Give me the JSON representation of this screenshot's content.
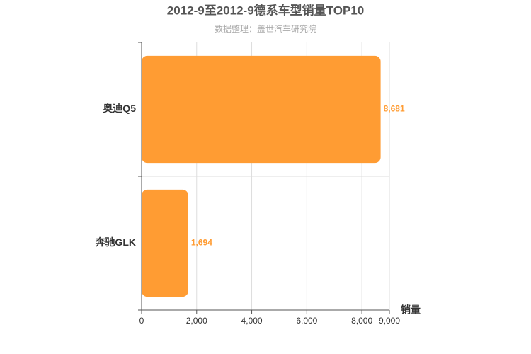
{
  "chart_data": {
    "type": "hbar",
    "title": "2012-9至2012-9德系车型销量TOP10",
    "subtitle": "数据整理：盖世汽车研究院",
    "x_label": "销量",
    "categories": [
      "奥迪Q5",
      "奔驰GLK"
    ],
    "values": [
      8681,
      1694
    ],
    "value_labels": [
      "8,681",
      "1,694"
    ],
    "color": "#ff9c33",
    "xlim": [
      0,
      9000
    ],
    "xticks": [
      0,
      {
        "value": 2000,
        "label": "2,000"
      },
      {
        "value": 4000,
        "label": "4,000"
      },
      {
        "value": 6000,
        "label": "6,000"
      },
      {
        "value": 8000,
        "label": "8,000"
      },
      {
        "value": 9000,
        "label": "9,000"
      }
    ],
    "grid": true
  }
}
